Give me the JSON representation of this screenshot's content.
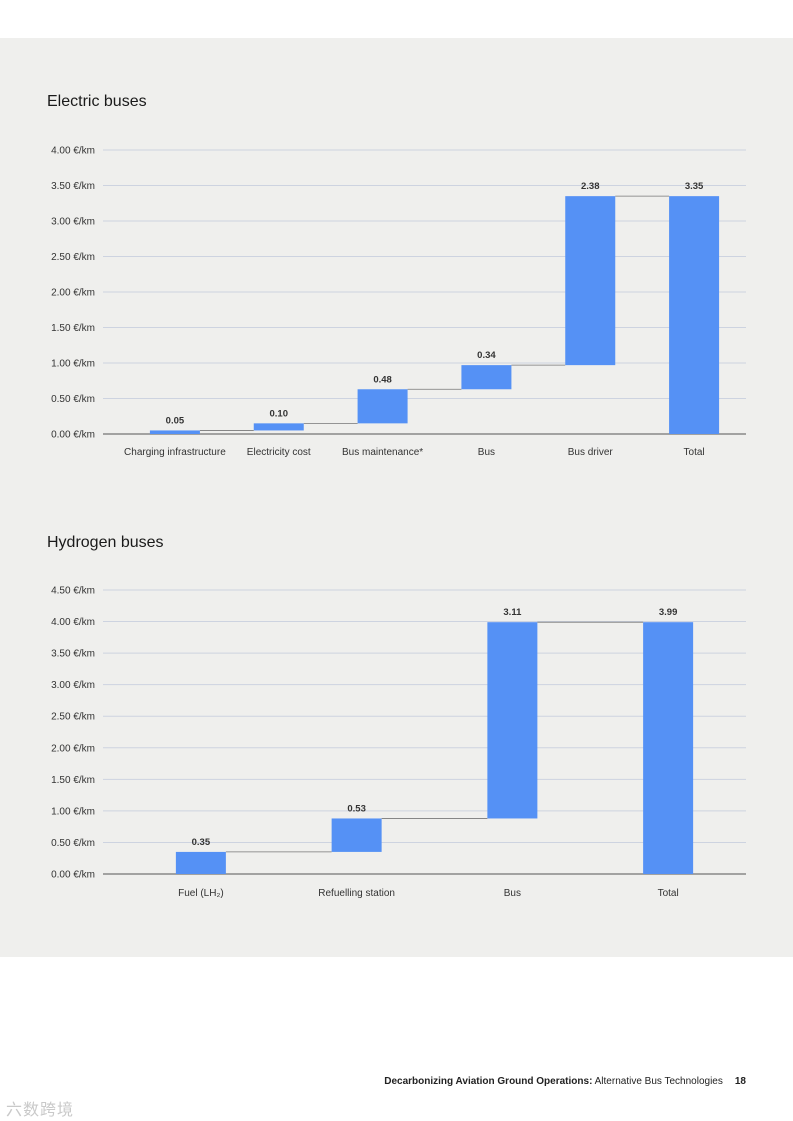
{
  "colors": {
    "bar": "#5591f5",
    "grid": "#cdd3e0",
    "axis": "#555555",
    "panel": "#efefed"
  },
  "chart_data": [
    {
      "type": "waterfall",
      "title": "Electric buses",
      "unit_suffix": " €/km",
      "ylim": [
        0,
        4.0
      ],
      "ytick_labels": [
        "0.00 €/km",
        "0.50 €/km",
        "1.00 €/km",
        "1.50 €/km",
        "2.00 €/km",
        "2.50 €/km",
        "3.00 €/km",
        "3.50 €/km",
        "4.00 €/km"
      ],
      "categories": [
        "Charging infrastructure",
        "Electricity cost",
        "Bus maintenance*",
        "Bus",
        "Bus driver",
        "Total"
      ],
      "values": [
        0.05,
        0.1,
        0.48,
        0.34,
        2.38,
        3.35
      ],
      "value_labels": [
        "0.05",
        "0.10",
        "0.48",
        "0.34",
        "2.38",
        "3.35"
      ],
      "is_total": [
        false,
        false,
        false,
        false,
        false,
        true
      ],
      "grid": true
    },
    {
      "type": "waterfall",
      "title": "Hydrogen buses",
      "unit_suffix": " €/km",
      "ylim": [
        0,
        4.5
      ],
      "ytick_labels": [
        "0.00 €/km",
        "0.50 €/km",
        "1.00 €/km",
        "1.50 €/km",
        "2.00 €/km",
        "2.50 €/km",
        "3.00 €/km",
        "3.50 €/km",
        "4.00 €/km",
        "4.50 €/km"
      ],
      "categories": [
        "Fuel (LH₂)",
        "Refuelling station",
        "Bus",
        "Total"
      ],
      "values": [
        0.35,
        0.53,
        3.11,
        3.99
      ],
      "value_labels": [
        "0.35",
        "0.53",
        "3.11",
        "3.99"
      ],
      "is_total": [
        false,
        false,
        false,
        true
      ],
      "grid": true
    }
  ],
  "footer": {
    "title_bold": "Decarbonizing Aviation Ground Operations:",
    "title_rest": " Alternative Bus Technologies",
    "page_number": "18"
  },
  "watermark": "六数跨境"
}
